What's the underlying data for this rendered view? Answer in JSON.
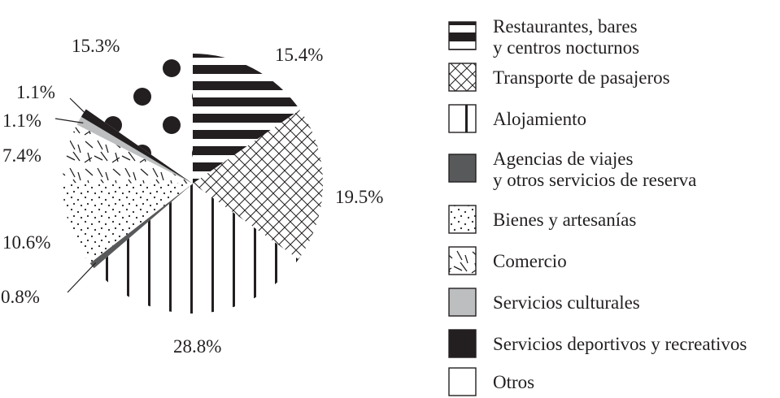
{
  "chart_data": {
    "type": "pie",
    "title": "",
    "legend_position": "right",
    "slices": [
      {
        "name": "Restaurantes, bares\ny centros nocturnos",
        "value": 15.4,
        "label": "15.4%",
        "pattern": "horizontal-stripes"
      },
      {
        "name": "Transporte de pasajeros",
        "value": 19.5,
        "label": "19.5%",
        "pattern": "crosshatch"
      },
      {
        "name": "Alojamiento",
        "value": 28.8,
        "label": "28.8%",
        "pattern": "vertical-stripes"
      },
      {
        "name": "Agencias de viajes\ny otros servicios de reserva",
        "value": 0.8,
        "label": "0.8%",
        "pattern": "solid-dark-gray"
      },
      {
        "name": "Bienes y artesanías",
        "value": 10.6,
        "label": "10.6%",
        "pattern": "dots"
      },
      {
        "name": "Comercio",
        "value": 7.4,
        "label": "7.4%",
        "pattern": "dashes"
      },
      {
        "name": "Servicios culturales",
        "value": 1.1,
        "label": "1.1%",
        "pattern": "solid-light-gray"
      },
      {
        "name": "Servicios deportivos y recreativos",
        "value": 1.1,
        "label": "1.1%",
        "pattern": "solid-black"
      },
      {
        "name": "Otros",
        "value": 15.3,
        "label": "15.3%",
        "pattern": "large-dots"
      }
    ]
  },
  "colors": {
    "ink": "#231f20",
    "dark_gray": "#58595b",
    "light_gray": "#bcbec0",
    "background": "#ffffff"
  }
}
